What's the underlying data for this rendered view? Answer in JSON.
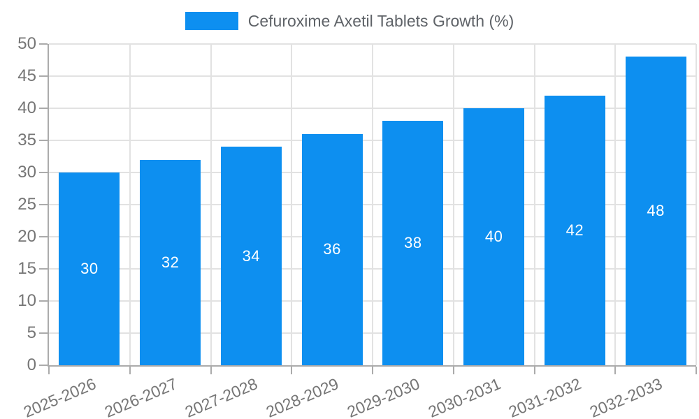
{
  "chart_data": {
    "type": "bar",
    "title": "Cefuroxime Axetil Tablets Growth (%)",
    "categories": [
      "2025-2026",
      "2026-2027",
      "2027-2028",
      "2028-2029",
      "2029-2030",
      "2030-2031",
      "2031-2032",
      "2032-2033"
    ],
    "values": [
      30,
      32,
      34,
      36,
      38,
      40,
      42,
      48
    ],
    "value_labels": [
      "30",
      "32",
      "34",
      "36",
      "38",
      "40",
      "42",
      "48"
    ],
    "xlabel": "",
    "ylabel": "",
    "ylim": [
      0,
      50
    ],
    "ytick_step": 5,
    "yticks": [
      0,
      5,
      10,
      15,
      20,
      25,
      30,
      35,
      40,
      45,
      50
    ],
    "grid": true,
    "value_labels_position": "center-inside",
    "legend": {
      "position": "top-center",
      "label": "Cefuroxime Axetil Tablets Growth (%)",
      "swatch_color": "#0d8ff0"
    },
    "colors": {
      "bar": "#0d8ff0",
      "bar_label": "#ffffff",
      "axis_text": "#757575",
      "legend_text": "#5f6368",
      "gridline": "#e2e2e2",
      "axis_line": "#ababab",
      "background": "#ffffff"
    }
  }
}
